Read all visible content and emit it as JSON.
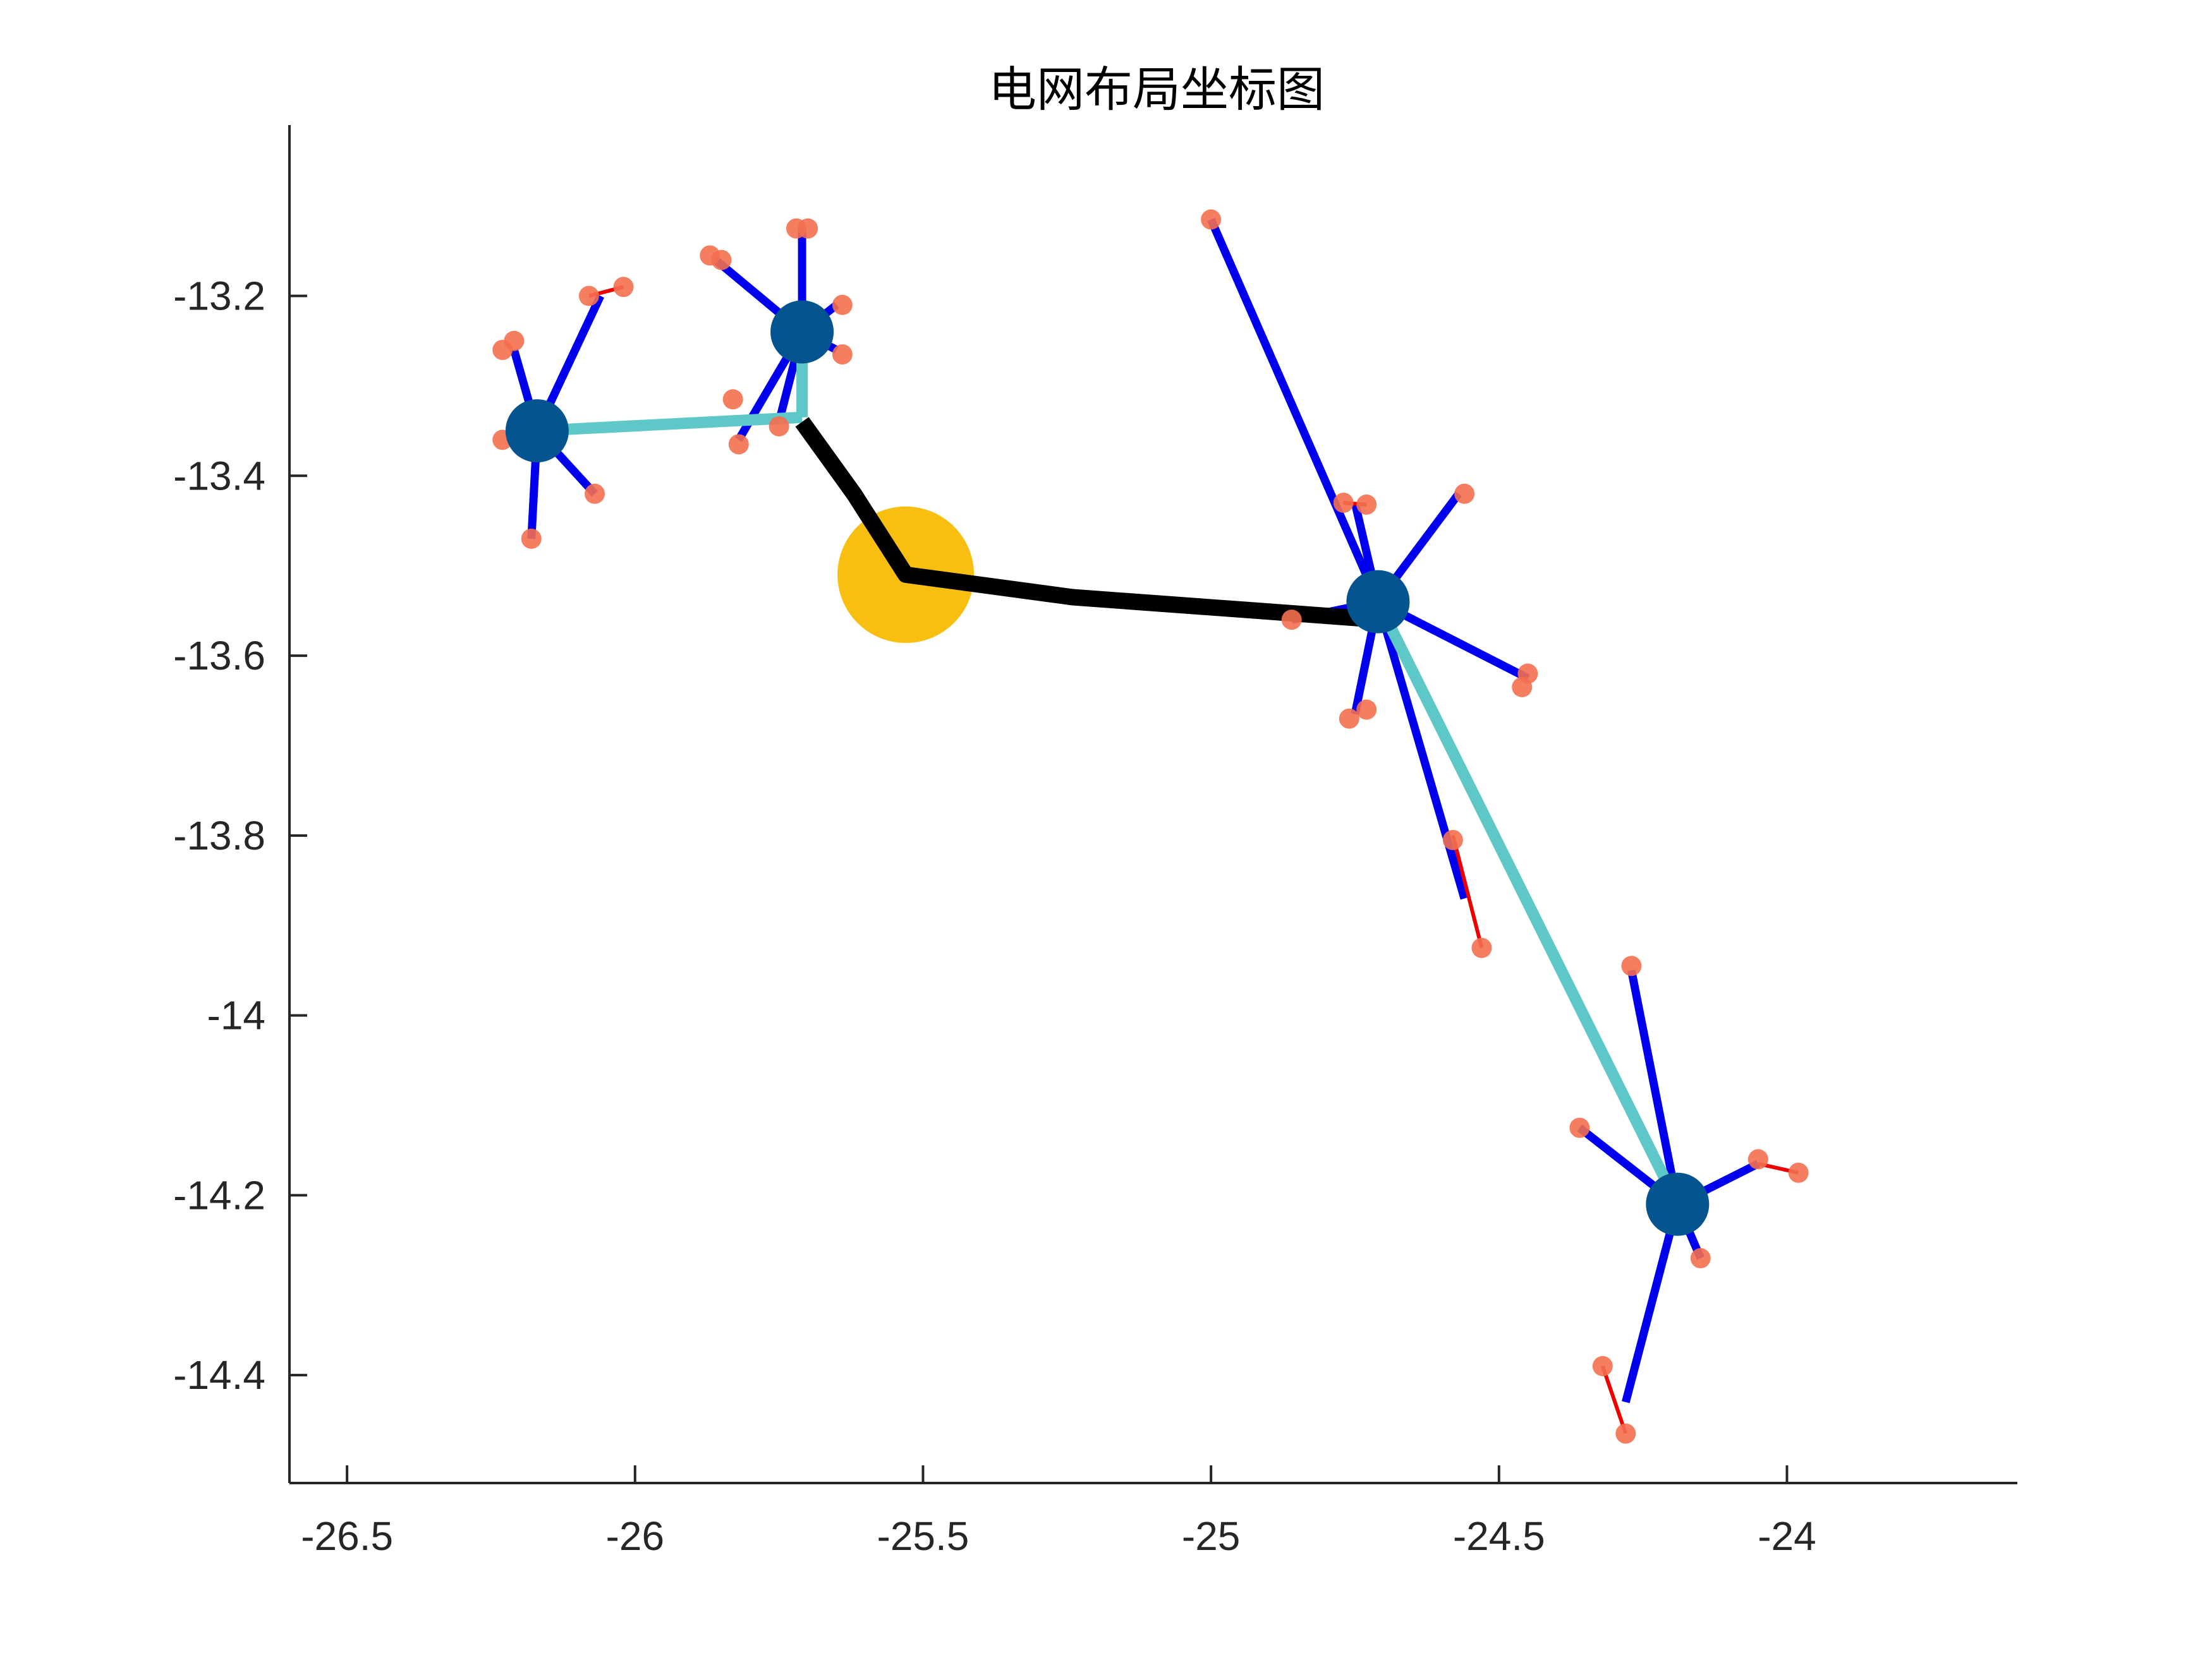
{
  "chart_data": {
    "type": "scatter",
    "title": "电网布局坐标图",
    "xlabel": "",
    "ylabel": "",
    "xlim": [
      -26.6,
      -23.6
    ],
    "ylim": [
      -14.52,
      -13.01
    ],
    "xticks": [
      -26.5,
      -26,
      -25.5,
      -25,
      -24.5,
      -24
    ],
    "xtick_labels": [
      "-26.5",
      "-26",
      "-25.5",
      "-25",
      "-24.5",
      "-24"
    ],
    "yticks": [
      -13.2,
      -13.4,
      -13.6,
      -13.8,
      -14,
      -14.2,
      -14.4
    ],
    "ytick_labels": [
      "-13.2",
      "-13.4",
      "-13.6",
      "-13.8",
      "-14",
      "-14.2",
      "-14.4"
    ],
    "grid": false,
    "colors": {
      "substation": "#f9bf10",
      "hub": "#04548f",
      "load": "#f46f4f",
      "feeder_black": "#000000",
      "trunk_cyan": "#5ec8c8",
      "branch_blue": "#0000ee",
      "link_red": "#ee0000",
      "axis": "#262626"
    },
    "substation": {
      "x": -25.53,
      "y": -13.51
    },
    "hubs": [
      {
        "x": -26.17,
        "y": -13.35
      },
      {
        "x": -25.71,
        "y": -13.24
      },
      {
        "x": -24.71,
        "y": -13.54
      },
      {
        "x": -24.19,
        "y": -14.21
      }
    ],
    "black_lines": [
      [
        [
          -25.71,
          -13.34
        ],
        [
          -25.62,
          -13.42
        ],
        [
          -25.53,
          -13.51
        ],
        [
          -25.24,
          -13.535
        ],
        [
          -24.92,
          -13.55
        ],
        [
          -24.71,
          -13.56
        ]
      ]
    ],
    "cyan_lines": [
      [
        [
          -26.17,
          -13.35
        ],
        [
          -25.71,
          -13.335
        ]
      ],
      [
        [
          -25.71,
          -13.335
        ],
        [
          -25.71,
          -13.24
        ]
      ],
      [
        [
          -24.71,
          -13.54
        ],
        [
          -24.19,
          -14.21
        ]
      ]
    ],
    "blue_lines": [
      [
        [
          -26.17,
          -13.35
        ],
        [
          -26.21,
          -13.26
        ]
      ],
      [
        [
          -26.17,
          -13.35
        ],
        [
          -26.06,
          -13.2
        ]
      ],
      [
        [
          -26.17,
          -13.35
        ],
        [
          -26.07,
          -13.42
        ]
      ],
      [
        [
          -26.17,
          -13.35
        ],
        [
          -26.18,
          -13.47
        ]
      ],
      [
        [
          -25.71,
          -13.24
        ],
        [
          -25.86,
          -13.16
        ]
      ],
      [
        [
          -25.71,
          -13.24
        ],
        [
          -25.71,
          -13.125
        ]
      ],
      [
        [
          -25.71,
          -13.24
        ],
        [
          -25.65,
          -13.21
        ]
      ],
      [
        [
          -25.71,
          -13.24
        ],
        [
          -25.65,
          -13.26
        ]
      ],
      [
        [
          -25.71,
          -13.24
        ],
        [
          -25.82,
          -13.36
        ]
      ],
      [
        [
          -25.71,
          -13.24
        ],
        [
          -25.75,
          -13.34
        ]
      ],
      [
        [
          -24.71,
          -13.54
        ],
        [
          -25.0,
          -13.115
        ]
      ],
      [
        [
          -24.71,
          -13.54
        ],
        [
          -24.75,
          -13.43
        ]
      ],
      [
        [
          -24.71,
          -13.54
        ],
        [
          -24.57,
          -13.42
        ]
      ],
      [
        [
          -24.71,
          -13.54
        ],
        [
          -24.45,
          -13.625
        ]
      ],
      [
        [
          -24.71,
          -13.54
        ],
        [
          -24.86,
          -13.56
        ]
      ],
      [
        [
          -24.71,
          -13.54
        ],
        [
          -24.75,
          -13.665
        ]
      ],
      [
        [
          -24.71,
          -13.54
        ],
        [
          -24.56,
          -13.87
        ]
      ],
      [
        [
          -24.19,
          -14.21
        ],
        [
          -24.27,
          -13.95
        ]
      ],
      [
        [
          -24.19,
          -14.21
        ],
        [
          -24.36,
          -14.125
        ]
      ],
      [
        [
          -24.19,
          -14.21
        ],
        [
          -24.05,
          -14.165
        ]
      ],
      [
        [
          -24.19,
          -14.21
        ],
        [
          -24.15,
          -14.27
        ]
      ],
      [
        [
          -24.19,
          -14.21
        ],
        [
          -24.28,
          -14.43
        ]
      ]
    ],
    "red_lines": [
      [
        [
          -26.08,
          -13.2
        ],
        [
          -26.02,
          -13.19
        ]
      ],
      [
        [
          -24.58,
          -13.8
        ],
        [
          -24.53,
          -13.925
        ]
      ],
      [
        [
          -24.32,
          -14.39
        ],
        [
          -24.28,
          -14.465
        ]
      ],
      [
        [
          -24.05,
          -14.165
        ],
        [
          -23.98,
          -14.175
        ]
      ],
      [
        [
          -24.77,
          -13.43
        ],
        [
          -24.73,
          -13.432
        ]
      ]
    ],
    "loads": [
      {
        "x": -26.21,
        "y": -13.25
      },
      {
        "x": -26.23,
        "y": -13.26
      },
      {
        "x": -26.08,
        "y": -13.2
      },
      {
        "x": -26.02,
        "y": -13.19
      },
      {
        "x": -26.23,
        "y": -13.36
      },
      {
        "x": -26.07,
        "y": -13.42
      },
      {
        "x": -26.18,
        "y": -13.47
      },
      {
        "x": -25.87,
        "y": -13.155
      },
      {
        "x": -25.85,
        "y": -13.16
      },
      {
        "x": -25.72,
        "y": -13.125
      },
      {
        "x": -25.7,
        "y": -13.125
      },
      {
        "x": -25.64,
        "y": -13.21
      },
      {
        "x": -25.64,
        "y": -13.265
      },
      {
        "x": -25.83,
        "y": -13.315
      },
      {
        "x": -25.82,
        "y": -13.365
      },
      {
        "x": -25.75,
        "y": -13.345
      },
      {
        "x": -25.0,
        "y": -13.115
      },
      {
        "x": -24.77,
        "y": -13.43
      },
      {
        "x": -24.73,
        "y": -13.432
      },
      {
        "x": -24.56,
        "y": -13.42
      },
      {
        "x": -24.45,
        "y": -13.62
      },
      {
        "x": -24.46,
        "y": -13.635
      },
      {
        "x": -24.86,
        "y": -13.56
      },
      {
        "x": -24.76,
        "y": -13.67
      },
      {
        "x": -24.73,
        "y": -13.66
      },
      {
        "x": -24.58,
        "y": -13.805
      },
      {
        "x": -24.53,
        "y": -13.925
      },
      {
        "x": -24.27,
        "y": -13.945
      },
      {
        "x": -24.36,
        "y": -14.125
      },
      {
        "x": -24.05,
        "y": -14.16
      },
      {
        "x": -23.98,
        "y": -14.175
      },
      {
        "x": -24.15,
        "y": -14.27
      },
      {
        "x": -24.32,
        "y": -14.39
      },
      {
        "x": -24.28,
        "y": -14.465
      }
    ]
  }
}
